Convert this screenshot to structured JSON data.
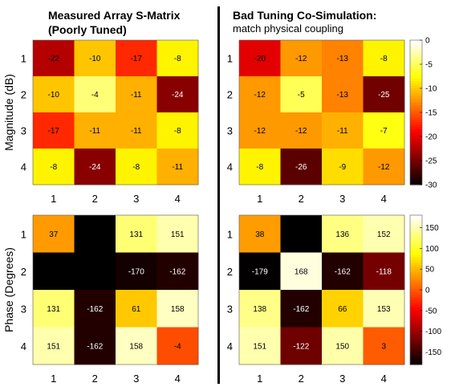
{
  "titles": {
    "left_line1": "Measured Array S-Matrix",
    "left_line2": "(Poorly Tuned)",
    "right_line1": "Bad Tuning Co-Simulation:",
    "right_subtitle": "match physical coupling"
  },
  "chart_data": [
    {
      "type": "heatmap",
      "name": "measured-magnitude",
      "ylabel": "Magnitude (dB)",
      "x_ticks": [
        "1",
        "2",
        "3",
        "4"
      ],
      "y_ticks": [
        "1",
        "2",
        "3",
        "4"
      ],
      "clim": [
        -30,
        0
      ],
      "values": [
        [
          -22,
          -10,
          -17,
          -8
        ],
        [
          -10,
          -4,
          -11,
          -24
        ],
        [
          -17,
          -11,
          -11,
          -8
        ],
        [
          -8,
          -24,
          -8,
          -11
        ]
      ],
      "labels": [
        [
          "-22",
          "-10",
          "-17",
          "-8"
        ],
        [
          "-10",
          "-4",
          "-11",
          "-24"
        ],
        [
          "-17",
          "-11",
          "-11",
          "-8"
        ],
        [
          "-8",
          "-24",
          "-8",
          "-11"
        ]
      ]
    },
    {
      "type": "heatmap",
      "name": "cosim-magnitude",
      "x_ticks": [
        "1",
        "2",
        "3",
        "4"
      ],
      "y_ticks": [
        "1",
        "2",
        "3",
        "4"
      ],
      "clim": [
        -30,
        0
      ],
      "values": [
        [
          -20,
          -12,
          -13,
          -8
        ],
        [
          -12,
          -5,
          -13,
          -25
        ],
        [
          -12,
          -12,
          -11,
          -7
        ],
        [
          -8,
          -26,
          -9,
          -12
        ]
      ],
      "labels": [
        [
          "-20",
          "-12",
          "-13",
          "-8"
        ],
        [
          "-12",
          "-5",
          "-13",
          "-25"
        ],
        [
          "-12",
          "-12",
          "-11",
          "-7"
        ],
        [
          "-8",
          "-26",
          "-9",
          "-12"
        ]
      ],
      "colorbar_ticks": [
        "0",
        "-5",
        "-10",
        "-15",
        "-20",
        "-25",
        "-30"
      ],
      "colorbar_values": [
        0,
        -5,
        -10,
        -15,
        -20,
        -25,
        -30
      ]
    },
    {
      "type": "heatmap",
      "name": "measured-phase",
      "ylabel": "Phase (Degrees)",
      "x_ticks": [
        "1",
        "2",
        "3",
        "4"
      ],
      "y_ticks": [
        "1",
        "2",
        "3",
        "4"
      ],
      "clim": [
        -180,
        180
      ],
      "values": [
        [
          37,
          -180,
          131,
          151
        ],
        [
          -180,
          -180,
          -170,
          -162
        ],
        [
          131,
          -162,
          61,
          158
        ],
        [
          151,
          -162,
          158,
          -4
        ]
      ],
      "labels": [
        [
          "37",
          "",
          "131",
          "151"
        ],
        [
          "",
          "",
          "-170",
          "-162"
        ],
        [
          "131",
          "-162",
          "61",
          "158"
        ],
        [
          "151",
          "-162",
          "158",
          "-4"
        ]
      ]
    },
    {
      "type": "heatmap",
      "name": "cosim-phase",
      "x_ticks": [
        "1",
        "2",
        "3",
        "4"
      ],
      "y_ticks": [
        "1",
        "2",
        "3",
        "4"
      ],
      "clim": [
        -180,
        180
      ],
      "values": [
        [
          38,
          -180,
          136,
          152
        ],
        [
          -179,
          168,
          -162,
          -118
        ],
        [
          138,
          -162,
          66,
          153
        ],
        [
          151,
          -122,
          150,
          3
        ]
      ],
      "labels": [
        [
          "38",
          "",
          "136",
          "152"
        ],
        [
          "-179",
          "168",
          "-162",
          "-118"
        ],
        [
          "138",
          "-162",
          "66",
          "153"
        ],
        [
          "151",
          "-122",
          "150",
          "3"
        ]
      ],
      "colorbar_ticks": [
        "150",
        "100",
        "50",
        "0",
        "-50",
        "-100",
        "-150"
      ],
      "colorbar_values": [
        150,
        100,
        50,
        0,
        -50,
        -100,
        -150
      ]
    }
  ]
}
